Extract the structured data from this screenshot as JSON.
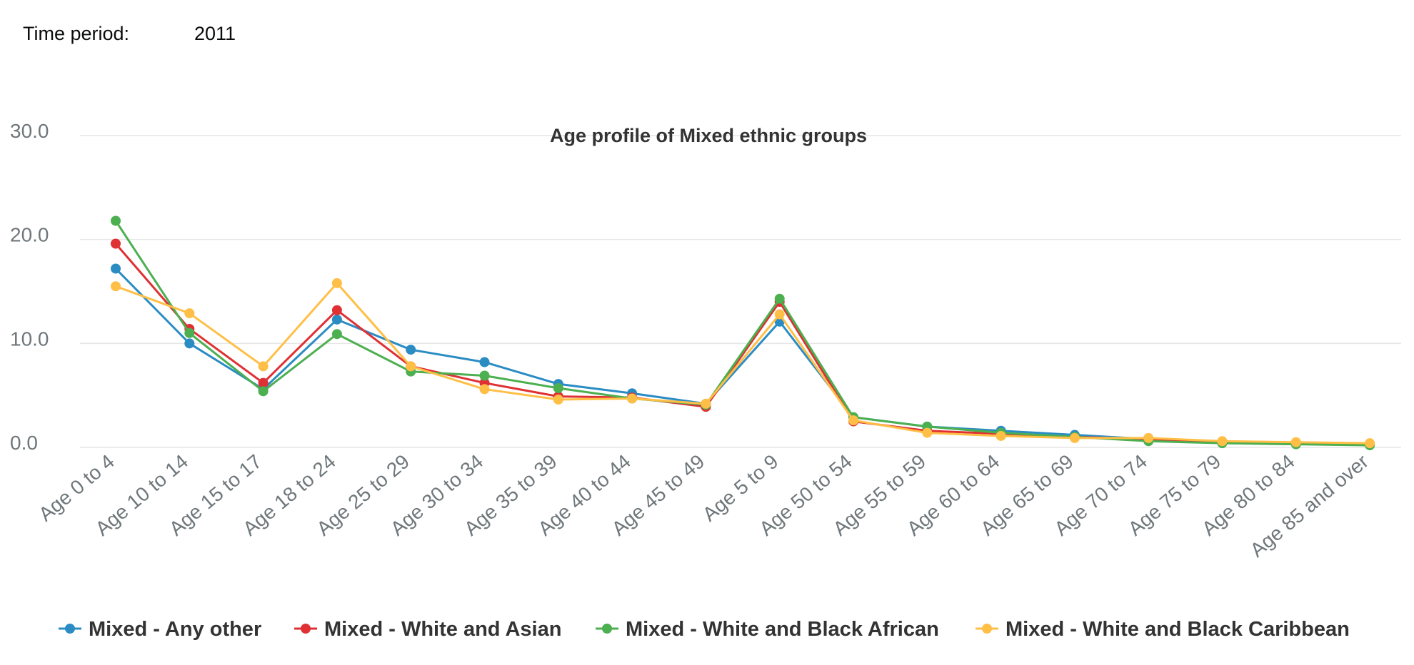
{
  "time_period": {
    "label": "Time period:",
    "value": "2011"
  },
  "chart_data": {
    "type": "line",
    "title": "Age profile of Mixed ethnic groups",
    "xlabel": "",
    "ylabel": "",
    "ylim": [
      0,
      30
    ],
    "yticks": [
      0,
      10,
      20,
      30
    ],
    "ytick_labels": [
      "0.0",
      "10.0",
      "20.0",
      "30.0"
    ],
    "grid": true,
    "legend": "bottom",
    "categories": [
      "Age 0 to 4",
      "Age 10 to 14",
      "Age 15 to 17",
      "Age 18 to 24",
      "Age 25 to 29",
      "Age 30 to 34",
      "Age 35 to 39",
      "Age 40 to 44",
      "Age 45 to 49",
      "Age 5 to 9",
      "Age 50 to 54",
      "Age 55 to 59",
      "Age 60 to 64",
      "Age 65 to 69",
      "Age 70 to 74",
      "Age 75 to 79",
      "Age 80 to 84",
      "Age 85 and over"
    ],
    "series": [
      {
        "name": "Mixed - Any other",
        "color": "#2b8cc4",
        "values": [
          17.2,
          10.0,
          5.6,
          12.3,
          9.4,
          8.2,
          6.1,
          5.2,
          4.2,
          12.1,
          2.9,
          2.0,
          1.6,
          1.2,
          0.8,
          0.5,
          0.4,
          0.3
        ]
      },
      {
        "name": "Mixed - White and Asian",
        "color": "#df3034",
        "values": [
          19.6,
          11.4,
          6.2,
          13.2,
          7.8,
          6.2,
          4.9,
          4.8,
          3.9,
          14.0,
          2.5,
          1.6,
          1.3,
          1.0,
          0.8,
          0.5,
          0.4,
          0.3
        ]
      },
      {
        "name": "Mixed - White and Black African",
        "color": "#4caf50",
        "values": [
          21.8,
          11.0,
          5.4,
          10.9,
          7.3,
          6.9,
          5.7,
          4.7,
          4.1,
          14.3,
          2.9,
          2.0,
          1.4,
          1.0,
          0.6,
          0.4,
          0.3,
          0.2
        ]
      },
      {
        "name": "Mixed - White and Black Caribbean",
        "color": "#ffbf47",
        "values": [
          15.5,
          12.9,
          7.8,
          15.8,
          7.8,
          5.6,
          4.6,
          4.7,
          4.2,
          12.8,
          2.6,
          1.4,
          1.1,
          0.9,
          0.9,
          0.6,
          0.5,
          0.4
        ]
      }
    ]
  }
}
